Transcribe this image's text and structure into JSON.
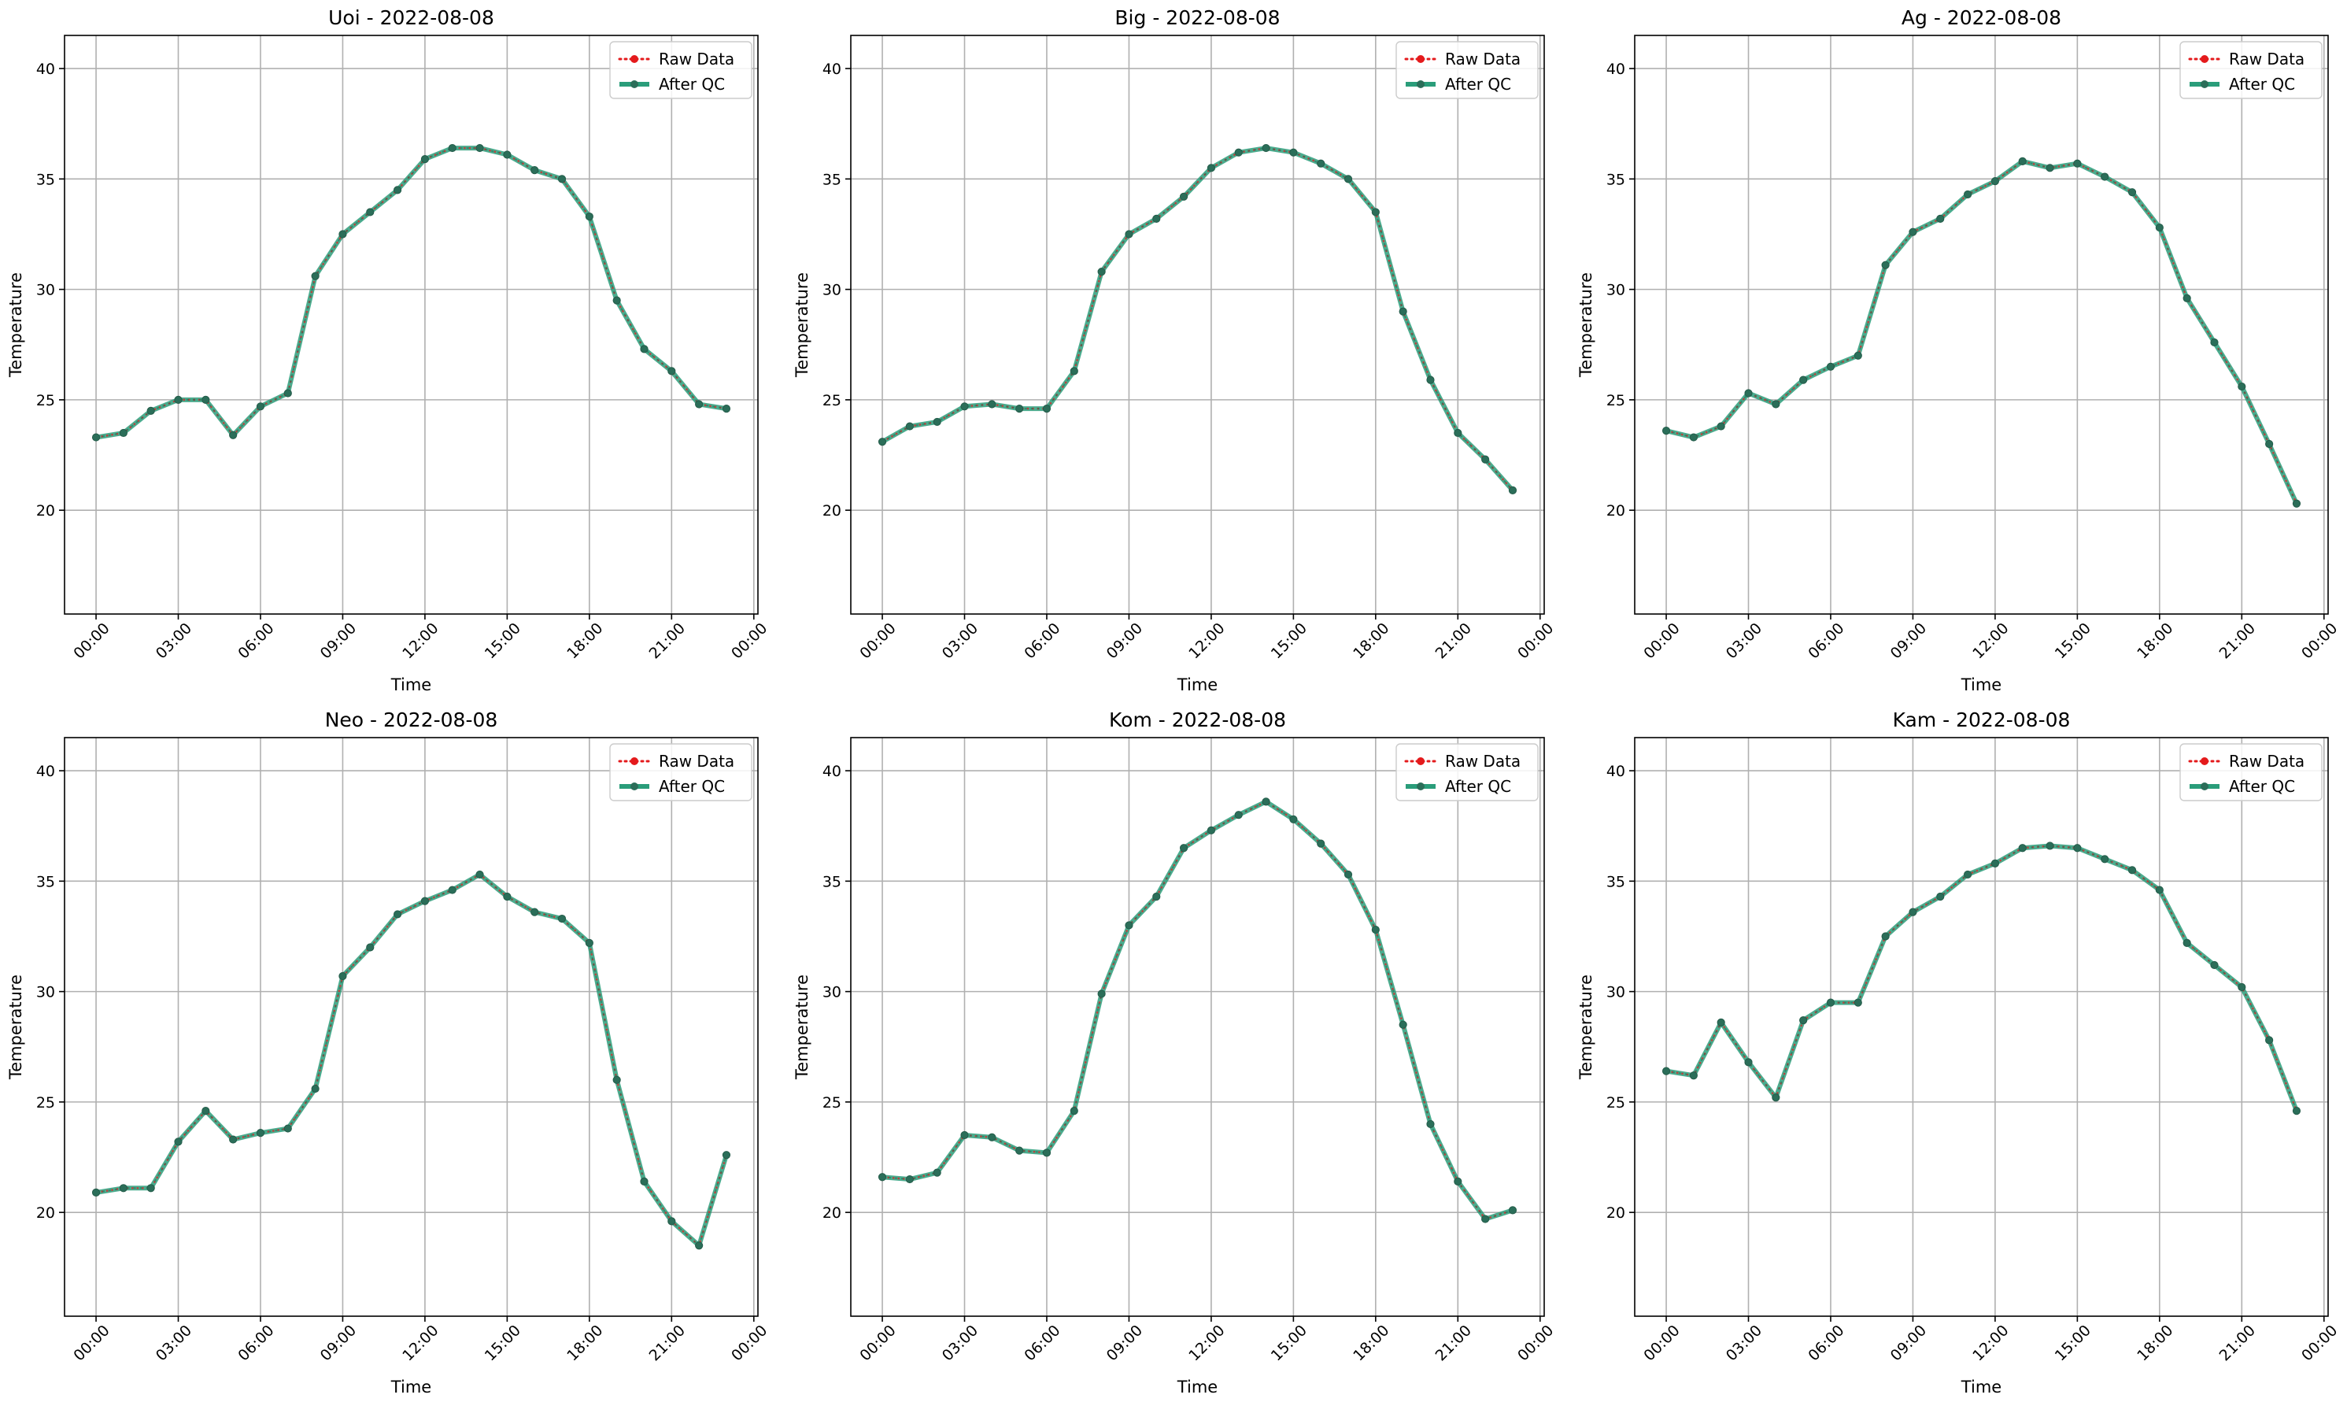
{
  "chart_data": [
    {
      "type": "line",
      "title": "Uoi - 2022-08-08",
      "xlabel": "Time",
      "ylabel": "Temperature",
      "x_ticks": [
        "00:00",
        "03:00",
        "06:00",
        "09:00",
        "12:00",
        "15:00",
        "18:00",
        "21:00",
        "00:00"
      ],
      "y_ticks": [
        20,
        25,
        30,
        35,
        40
      ],
      "ylim": [
        15.3,
        41.5
      ],
      "grid": true,
      "legend_position": "top-right",
      "hours": [
        0,
        1,
        2,
        3,
        4,
        5,
        6,
        7,
        8,
        9,
        10,
        11,
        12,
        13,
        14,
        15,
        16,
        17,
        18,
        19,
        20,
        21,
        22,
        23
      ],
      "series": [
        {
          "name": "Raw Data",
          "style": "dotted",
          "color": "#e41a1c",
          "values": [
            23.3,
            23.5,
            24.5,
            25.0,
            25.0,
            23.4,
            24.7,
            25.3,
            30.6,
            32.5,
            33.5,
            34.5,
            35.9,
            36.4,
            36.4,
            36.1,
            35.4,
            35.0,
            33.3,
            29.5,
            27.3,
            26.3,
            24.8,
            24.6
          ]
        },
        {
          "name": "After QC",
          "style": "solid",
          "color": "#2a9d7a",
          "values": [
            23.3,
            23.5,
            24.5,
            25.0,
            25.0,
            23.4,
            24.7,
            25.3,
            30.6,
            32.5,
            33.5,
            34.5,
            35.9,
            36.4,
            36.4,
            36.1,
            35.4,
            35.0,
            33.3,
            29.5,
            27.3,
            26.3,
            24.8,
            24.6
          ]
        }
      ]
    },
    {
      "type": "line",
      "title": "Big - 2022-08-08",
      "xlabel": "Time",
      "ylabel": "Temperature",
      "x_ticks": [
        "00:00",
        "03:00",
        "06:00",
        "09:00",
        "12:00",
        "15:00",
        "18:00",
        "21:00",
        "00:00"
      ],
      "y_ticks": [
        20,
        25,
        30,
        35,
        40
      ],
      "ylim": [
        15.3,
        41.5
      ],
      "grid": true,
      "legend_position": "top-right",
      "hours": [
        0,
        1,
        2,
        3,
        4,
        5,
        6,
        7,
        8,
        9,
        10,
        11,
        12,
        13,
        14,
        15,
        16,
        17,
        18,
        19,
        20,
        21,
        22,
        23
      ],
      "series": [
        {
          "name": "Raw Data",
          "style": "dotted",
          "color": "#e41a1c",
          "values": [
            23.1,
            23.8,
            24.0,
            24.7,
            24.8,
            24.6,
            24.6,
            26.3,
            30.8,
            32.5,
            33.2,
            34.2,
            35.5,
            36.2,
            36.4,
            36.2,
            35.7,
            35.0,
            33.5,
            29.0,
            25.9,
            23.5,
            22.3,
            20.9
          ]
        },
        {
          "name": "After QC",
          "style": "solid",
          "color": "#2a9d7a",
          "values": [
            23.1,
            23.8,
            24.0,
            24.7,
            24.8,
            24.6,
            24.6,
            26.3,
            30.8,
            32.5,
            33.2,
            34.2,
            35.5,
            36.2,
            36.4,
            36.2,
            35.7,
            35.0,
            33.5,
            29.0,
            25.9,
            23.5,
            22.3,
            20.9
          ]
        }
      ]
    },
    {
      "type": "line",
      "title": "Ag - 2022-08-08",
      "xlabel": "Time",
      "ylabel": "Temperature",
      "x_ticks": [
        "00:00",
        "03:00",
        "06:00",
        "09:00",
        "12:00",
        "15:00",
        "18:00",
        "21:00",
        "00:00"
      ],
      "y_ticks": [
        20,
        25,
        30,
        35,
        40
      ],
      "ylim": [
        15.3,
        41.5
      ],
      "grid": true,
      "legend_position": "top-right",
      "hours": [
        0,
        1,
        2,
        3,
        4,
        5,
        6,
        7,
        8,
        9,
        10,
        11,
        12,
        13,
        14,
        15,
        16,
        17,
        18,
        19,
        20,
        21,
        22,
        23
      ],
      "series": [
        {
          "name": "Raw Data",
          "style": "dotted",
          "color": "#e41a1c",
          "values": [
            23.6,
            23.3,
            23.8,
            25.3,
            24.8,
            25.9,
            26.5,
            27.0,
            31.1,
            32.6,
            33.2,
            34.3,
            34.9,
            35.8,
            35.5,
            35.7,
            35.1,
            34.4,
            32.8,
            29.6,
            27.6,
            25.6,
            23.0,
            20.3
          ]
        },
        {
          "name": "After QC",
          "style": "solid",
          "color": "#2a9d7a",
          "values": [
            23.6,
            23.3,
            23.8,
            25.3,
            24.8,
            25.9,
            26.5,
            27.0,
            31.1,
            32.6,
            33.2,
            34.3,
            34.9,
            35.8,
            35.5,
            35.7,
            35.1,
            34.4,
            32.8,
            29.6,
            27.6,
            25.6,
            23.0,
            20.3
          ]
        }
      ]
    },
    {
      "type": "line",
      "title": "Neo - 2022-08-08",
      "xlabel": "Time",
      "ylabel": "Temperature",
      "x_ticks": [
        "00:00",
        "03:00",
        "06:00",
        "09:00",
        "12:00",
        "15:00",
        "18:00",
        "21:00",
        "00:00"
      ],
      "y_ticks": [
        20,
        25,
        30,
        35,
        40
      ],
      "ylim": [
        15.3,
        41.5
      ],
      "grid": true,
      "legend_position": "top-right",
      "hours": [
        0,
        1,
        2,
        3,
        4,
        5,
        6,
        7,
        8,
        9,
        10,
        11,
        12,
        13,
        14,
        15,
        16,
        17,
        18,
        19,
        20,
        21,
        22,
        23
      ],
      "series": [
        {
          "name": "Raw Data",
          "style": "dotted",
          "color": "#e41a1c",
          "values": [
            20.9,
            21.1,
            21.1,
            23.2,
            24.6,
            23.3,
            23.6,
            23.8,
            25.6,
            30.7,
            32.0,
            33.5,
            34.1,
            34.6,
            35.3,
            34.3,
            33.6,
            33.3,
            32.2,
            26.0,
            21.4,
            19.6,
            18.5,
            22.6
          ]
        },
        {
          "name": "After QC",
          "style": "solid",
          "color": "#2a9d7a",
          "values": [
            20.9,
            21.1,
            21.1,
            23.2,
            24.6,
            23.3,
            23.6,
            23.8,
            25.6,
            30.7,
            32.0,
            33.5,
            34.1,
            34.6,
            35.3,
            34.3,
            33.6,
            33.3,
            32.2,
            26.0,
            21.4,
            19.6,
            18.5,
            22.6
          ]
        }
      ]
    },
    {
      "type": "line",
      "title": "Kom - 2022-08-08",
      "xlabel": "Time",
      "ylabel": "Temperature",
      "x_ticks": [
        "00:00",
        "03:00",
        "06:00",
        "09:00",
        "12:00",
        "15:00",
        "18:00",
        "21:00",
        "00:00"
      ],
      "y_ticks": [
        20,
        25,
        30,
        35,
        40
      ],
      "ylim": [
        15.3,
        41.5
      ],
      "grid": true,
      "legend_position": "top-right",
      "hours": [
        0,
        1,
        2,
        3,
        4,
        5,
        6,
        7,
        8,
        9,
        10,
        11,
        12,
        13,
        14,
        15,
        16,
        17,
        18,
        19,
        20,
        21,
        22,
        23
      ],
      "series": [
        {
          "name": "Raw Data",
          "style": "dotted",
          "color": "#e41a1c",
          "values": [
            21.6,
            21.5,
            21.8,
            23.5,
            23.4,
            22.8,
            22.7,
            24.6,
            29.9,
            33.0,
            34.3,
            36.5,
            37.3,
            38.0,
            38.6,
            37.8,
            36.7,
            35.3,
            32.8,
            28.5,
            24.0,
            21.4,
            19.7,
            20.1
          ]
        },
        {
          "name": "After QC",
          "style": "solid",
          "color": "#2a9d7a",
          "values": [
            21.6,
            21.5,
            21.8,
            23.5,
            23.4,
            22.8,
            22.7,
            24.6,
            29.9,
            33.0,
            34.3,
            36.5,
            37.3,
            38.0,
            38.6,
            37.8,
            36.7,
            35.3,
            32.8,
            28.5,
            24.0,
            21.4,
            19.7,
            20.1
          ]
        }
      ]
    },
    {
      "type": "line",
      "title": "Kam - 2022-08-08",
      "xlabel": "Time",
      "ylabel": "Temperature",
      "x_ticks": [
        "00:00",
        "03:00",
        "06:00",
        "09:00",
        "12:00",
        "15:00",
        "18:00",
        "21:00",
        "00:00"
      ],
      "y_ticks": [
        20,
        25,
        30,
        35,
        40
      ],
      "ylim": [
        15.3,
        41.5
      ],
      "grid": true,
      "legend_position": "top-right",
      "hours": [
        0,
        1,
        2,
        3,
        4,
        5,
        6,
        7,
        8,
        9,
        10,
        11,
        12,
        13,
        14,
        15,
        16,
        17,
        18,
        19,
        20,
        21,
        22,
        23
      ],
      "series": [
        {
          "name": "Raw Data",
          "style": "dotted",
          "color": "#e41a1c",
          "values": [
            26.4,
            26.2,
            28.6,
            26.8,
            25.2,
            28.7,
            29.5,
            29.5,
            32.5,
            33.6,
            34.3,
            35.3,
            35.8,
            36.5,
            36.6,
            36.5,
            36.0,
            35.5,
            34.6,
            32.2,
            31.2,
            30.2,
            27.8,
            24.6
          ]
        },
        {
          "name": "After QC",
          "style": "solid",
          "color": "#2a9d7a",
          "values": [
            26.4,
            26.2,
            28.6,
            26.8,
            25.2,
            28.7,
            29.5,
            29.5,
            32.5,
            33.6,
            34.3,
            35.3,
            35.8,
            36.5,
            36.6,
            36.5,
            36.0,
            35.5,
            34.6,
            32.2,
            31.2,
            30.2,
            27.8,
            24.6
          ]
        }
      ]
    }
  ]
}
